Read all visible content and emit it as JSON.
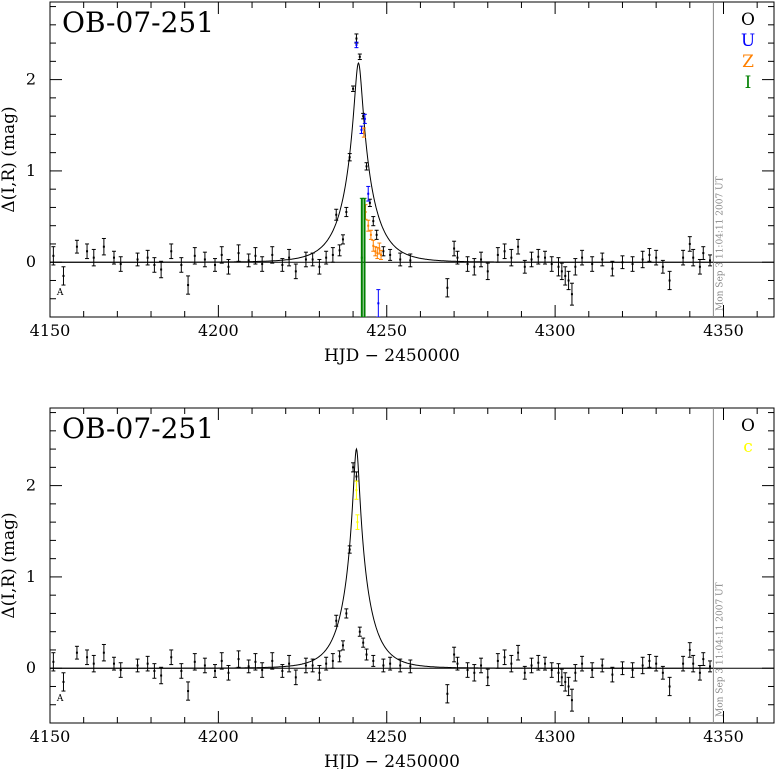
{
  "chart_data": [
    {
      "type": "scatter",
      "title": "OB-07-251",
      "xlabel": "HJD − 2450000",
      "ylabel": "Δ(I,R) (mag)",
      "xlim": [
        4150,
        4365
      ],
      "ylim": [
        -0.6,
        2.85
      ],
      "xticks": [
        4150,
        4200,
        4250,
        4300,
        4350
      ],
      "yticks": [
        0,
        1,
        2
      ],
      "timestamp": "Mon Sep  3 11:04:11 2007 UT",
      "corner_mark": "A",
      "model": {
        "t0": 4241.6,
        "u0": 0.135,
        "tE": 8.0
      },
      "legend": [
        {
          "label": "O",
          "color": "#000000"
        },
        {
          "label": "U",
          "color": "#0000ff"
        },
        {
          "label": "Z",
          "color": "#ff8000"
        },
        {
          "label": "I",
          "color": "#008000"
        }
      ],
      "series": [
        {
          "name": "O",
          "color": "#000000",
          "points": [
            [
              4151,
              0.07,
              0.1
            ],
            [
              4154,
              -0.15,
              0.1
            ],
            [
              4158,
              0.17,
              0.07
            ],
            [
              4161,
              0.12,
              0.08
            ],
            [
              4163,
              0.05,
              0.09
            ],
            [
              4166,
              0.17,
              0.09
            ],
            [
              4169,
              0.05,
              0.07
            ],
            [
              4171,
              -0.02,
              0.08
            ],
            [
              4176,
              0.03,
              0.07
            ],
            [
              4179,
              0.05,
              0.08
            ],
            [
              4181,
              -0.03,
              0.08
            ],
            [
              4183,
              -0.08,
              0.09
            ],
            [
              4186,
              0.12,
              0.08
            ],
            [
              4189,
              -0.03,
              0.08
            ],
            [
              4191,
              -0.25,
              0.1
            ],
            [
              4193,
              0.07,
              0.09
            ],
            [
              4196,
              0.03,
              0.08
            ],
            [
              4199,
              -0.03,
              0.07
            ],
            [
              4201,
              0.08,
              0.09
            ],
            [
              4203,
              -0.05,
              0.08
            ],
            [
              4206,
              0.1,
              0.09
            ],
            [
              4209,
              0.02,
              0.07
            ],
            [
              4211,
              0.07,
              0.09
            ],
            [
              4213,
              -0.02,
              0.08
            ],
            [
              4216,
              0.08,
              0.09
            ],
            [
              4219,
              -0.03,
              0.07
            ],
            [
              4221,
              0.05,
              0.09
            ],
            [
              4223,
              -0.1,
              0.08
            ],
            [
              4226,
              0.03,
              0.08
            ],
            [
              4228,
              0.03,
              0.07
            ],
            [
              4230,
              -0.05,
              0.08
            ],
            [
              4232,
              0.05,
              0.07
            ],
            [
              4234,
              0.08,
              0.08
            ],
            [
              4235,
              0.52,
              0.06
            ],
            [
              4236,
              0.13,
              0.06
            ],
            [
              4237,
              0.25,
              0.05
            ],
            [
              4238,
              0.55,
              0.05
            ],
            [
              4239,
              1.15,
              0.04
            ],
            [
              4240,
              1.9,
              0.03
            ],
            [
              4241,
              2.45,
              0.05
            ],
            [
              4242,
              2.25,
              0.03
            ],
            [
              4243,
              1.6,
              0.03
            ],
            [
              4244,
              1.05,
              0.04
            ],
            [
              4245,
              0.65,
              0.04
            ],
            [
              4246,
              0.45,
              0.05
            ],
            [
              4247,
              0.3,
              0.05
            ],
            [
              4249,
              0.12,
              0.05
            ],
            [
              4251,
              0.08,
              0.06
            ],
            [
              4254,
              0.03,
              0.07
            ],
            [
              4257,
              0.02,
              0.07
            ],
            [
              4268,
              -0.28,
              0.1
            ],
            [
              4270,
              0.15,
              0.08
            ],
            [
              4271,
              0.05,
              0.07
            ],
            [
              4274,
              -0.02,
              0.08
            ],
            [
              4276,
              -0.05,
              0.09
            ],
            [
              4278,
              0.03,
              0.08
            ],
            [
              4280,
              -0.1,
              0.09
            ],
            [
              4283,
              0.08,
              0.08
            ],
            [
              4285,
              0.12,
              0.08
            ],
            [
              4287,
              0.05,
              0.09
            ],
            [
              4289,
              0.17,
              0.08
            ],
            [
              4291,
              -0.05,
              0.07
            ],
            [
              4293,
              0.03,
              0.08
            ],
            [
              4295,
              0.06,
              0.08
            ],
            [
              4297,
              0.05,
              0.07
            ],
            [
              4299,
              -0.02,
              0.08
            ],
            [
              4301,
              -0.05,
              0.1
            ],
            [
              4302,
              -0.1,
              0.09
            ],
            [
              4303,
              -0.15,
              0.1
            ],
            [
              4304,
              -0.2,
              0.1
            ],
            [
              4305,
              -0.35,
              0.12
            ],
            [
              4306,
              -0.05,
              0.09
            ],
            [
              4308,
              0.05,
              0.08
            ],
            [
              4311,
              -0.02,
              0.08
            ],
            [
              4314,
              0.03,
              0.07
            ],
            [
              4317,
              -0.07,
              0.08
            ],
            [
              4320,
              0.0,
              0.07
            ],
            [
              4323,
              -0.02,
              0.08
            ],
            [
              4326,
              0.03,
              0.09
            ],
            [
              4328,
              0.08,
              0.07
            ],
            [
              4330,
              0.05,
              0.08
            ],
            [
              4332,
              -0.05,
              0.07
            ],
            [
              4334,
              -0.2,
              0.1
            ],
            [
              4338,
              0.05,
              0.08
            ],
            [
              4340,
              0.2,
              0.08
            ],
            [
              4341,
              0.05,
              0.09
            ],
            [
              4343,
              -0.05,
              0.08
            ],
            [
              4344,
              0.1,
              0.07
            ],
            [
              4346,
              0.02,
              0.06
            ]
          ]
        },
        {
          "name": "U",
          "color": "#0000ff",
          "points": [
            [
              4241,
              2.38,
              0.03
            ],
            [
              4242.5,
              1.45,
              0.04
            ],
            [
              4243.5,
              1.57,
              0.05
            ],
            [
              4244.5,
              0.75,
              0.08
            ],
            [
              4247.5,
              -0.45,
              0.15
            ]
          ]
        },
        {
          "name": "Z",
          "color": "#ff8000",
          "points": [
            [
              4243.2,
              1.42,
              0.05
            ],
            [
              4243.7,
              0.55,
              0.08
            ],
            [
              4244.5,
              0.4,
              0.06
            ],
            [
              4245.3,
              0.3,
              0.05
            ],
            [
              4246.0,
              0.18,
              0.06
            ],
            [
              4246.6,
              0.12,
              0.05
            ],
            [
              4247.2,
              0.1,
              0.06
            ],
            [
              4247.8,
              0.15,
              0.06
            ],
            [
              4248.3,
              0.08,
              0.05
            ]
          ]
        },
        {
          "name": "I",
          "color": "#008000",
          "points": [
            [
              4242.6,
              0.05,
              0.65
            ],
            [
              4243.4,
              0.05,
              0.65
            ]
          ]
        }
      ]
    },
    {
      "type": "scatter",
      "title": "OB-07-251",
      "xlabel": "HJD − 2450000",
      "ylabel": "Δ(I,R) (mag)",
      "xlim": [
        4150,
        4365
      ],
      "ylim": [
        -0.6,
        2.85
      ],
      "xticks": [
        4150,
        4200,
        4250,
        4300,
        4350
      ],
      "yticks": [
        0,
        1,
        2
      ],
      "timestamp": "Mon Sep  3 11:04:11 2007 UT",
      "corner_mark": "A",
      "model": {
        "t0": 4241.0,
        "u0": 0.11,
        "tE": 7.2
      },
      "legend": [
        {
          "label": "O",
          "color": "#000000"
        },
        {
          "label": "c",
          "color": "#ffff00"
        }
      ],
      "series": [
        {
          "name": "O",
          "color": "#000000",
          "points": [
            [
              4151,
              0.07,
              0.1
            ],
            [
              4154,
              -0.15,
              0.1
            ],
            [
              4158,
              0.17,
              0.07
            ],
            [
              4161,
              0.12,
              0.08
            ],
            [
              4163,
              0.05,
              0.09
            ],
            [
              4166,
              0.17,
              0.09
            ],
            [
              4169,
              0.05,
              0.07
            ],
            [
              4171,
              -0.02,
              0.08
            ],
            [
              4176,
              0.03,
              0.07
            ],
            [
              4179,
              0.05,
              0.08
            ],
            [
              4181,
              -0.03,
              0.08
            ],
            [
              4183,
              -0.08,
              0.09
            ],
            [
              4186,
              0.12,
              0.08
            ],
            [
              4189,
              -0.03,
              0.08
            ],
            [
              4191,
              -0.25,
              0.1
            ],
            [
              4193,
              0.07,
              0.09
            ],
            [
              4196,
              0.03,
              0.08
            ],
            [
              4199,
              -0.03,
              0.07
            ],
            [
              4201,
              0.08,
              0.09
            ],
            [
              4203,
              -0.05,
              0.08
            ],
            [
              4206,
              0.1,
              0.09
            ],
            [
              4209,
              0.02,
              0.07
            ],
            [
              4211,
              0.07,
              0.09
            ],
            [
              4213,
              -0.02,
              0.08
            ],
            [
              4216,
              0.08,
              0.09
            ],
            [
              4219,
              -0.03,
              0.07
            ],
            [
              4221,
              0.05,
              0.09
            ],
            [
              4223,
              -0.1,
              0.08
            ],
            [
              4226,
              0.03,
              0.08
            ],
            [
              4228,
              0.03,
              0.07
            ],
            [
              4230,
              -0.05,
              0.08
            ],
            [
              4232,
              0.05,
              0.07
            ],
            [
              4234,
              0.08,
              0.08
            ],
            [
              4235,
              0.52,
              0.06
            ],
            [
              4236,
              0.13,
              0.06
            ],
            [
              4237,
              0.25,
              0.05
            ],
            [
              4238,
              0.6,
              0.05
            ],
            [
              4239,
              1.3,
              0.04
            ],
            [
              4240,
              2.2,
              0.05
            ],
            [
              4241,
              2.1,
              0.05
            ],
            [
              4242,
              0.4,
              0.05
            ],
            [
              4243,
              0.28,
              0.05
            ],
            [
              4244,
              0.15,
              0.06
            ],
            [
              4246,
              0.08,
              0.06
            ],
            [
              4249,
              0.03,
              0.07
            ],
            [
              4251,
              0.05,
              0.07
            ],
            [
              4254,
              0.03,
              0.07
            ],
            [
              4257,
              0.02,
              0.07
            ],
            [
              4268,
              -0.28,
              0.1
            ],
            [
              4270,
              0.15,
              0.08
            ],
            [
              4271,
              0.05,
              0.07
            ],
            [
              4274,
              -0.02,
              0.08
            ],
            [
              4276,
              -0.05,
              0.09
            ],
            [
              4278,
              0.03,
              0.08
            ],
            [
              4280,
              -0.1,
              0.09
            ],
            [
              4283,
              0.08,
              0.08
            ],
            [
              4285,
              0.12,
              0.08
            ],
            [
              4287,
              0.05,
              0.09
            ],
            [
              4289,
              0.17,
              0.08
            ],
            [
              4291,
              -0.05,
              0.07
            ],
            [
              4293,
              0.03,
              0.08
            ],
            [
              4295,
              0.06,
              0.08
            ],
            [
              4297,
              0.05,
              0.07
            ],
            [
              4299,
              -0.02,
              0.08
            ],
            [
              4301,
              -0.05,
              0.1
            ],
            [
              4302,
              -0.1,
              0.09
            ],
            [
              4303,
              -0.15,
              0.1
            ],
            [
              4304,
              -0.2,
              0.1
            ],
            [
              4305,
              -0.35,
              0.12
            ],
            [
              4306,
              -0.05,
              0.09
            ],
            [
              4308,
              0.05,
              0.08
            ],
            [
              4311,
              -0.02,
              0.08
            ],
            [
              4314,
              0.03,
              0.07
            ],
            [
              4317,
              -0.07,
              0.08
            ],
            [
              4320,
              0.0,
              0.07
            ],
            [
              4323,
              -0.02,
              0.08
            ],
            [
              4326,
              0.03,
              0.09
            ],
            [
              4328,
              0.08,
              0.07
            ],
            [
              4330,
              0.05,
              0.08
            ],
            [
              4332,
              -0.05,
              0.07
            ],
            [
              4334,
              -0.2,
              0.1
            ],
            [
              4338,
              0.05,
              0.08
            ],
            [
              4340,
              0.2,
              0.08
            ],
            [
              4341,
              0.05,
              0.09
            ],
            [
              4343,
              -0.05,
              0.08
            ],
            [
              4344,
              0.1,
              0.07
            ],
            [
              4346,
              0.02,
              0.06
            ]
          ]
        },
        {
          "name": "c",
          "color": "#ffff00",
          "points": [
            [
              4241,
              1.95,
              0.1
            ],
            [
              4241.3,
              1.6,
              0.08
            ]
          ]
        }
      ]
    }
  ]
}
